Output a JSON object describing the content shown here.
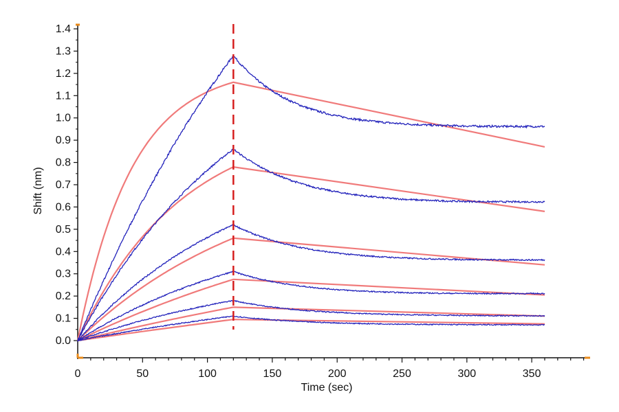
{
  "chart_data": {
    "type": "line",
    "xlabel": "Time (sec)",
    "ylabel": "Shift (nm)",
    "xlim": [
      0,
      395
    ],
    "ylim": [
      -0.05,
      1.42
    ],
    "x_ticks": [
      0,
      50,
      100,
      150,
      200,
      250,
      300,
      350
    ],
    "x_tick_labels": [
      "0",
      "50",
      "100",
      "150",
      "200",
      "250",
      "300",
      "350"
    ],
    "y_ticks": [
      0.0,
      0.1,
      0.2,
      0.3,
      0.4,
      0.5,
      0.6,
      0.7,
      0.8,
      0.9,
      1.0,
      1.1,
      1.2,
      1.3,
      1.4
    ],
    "y_tick_labels": [
      "0.0",
      "0.1",
      "0.2",
      "0.3",
      "0.4",
      "0.5",
      "0.6",
      "0.7",
      "0.8",
      "0.9",
      "1.0",
      "1.1",
      "1.2",
      "1.3",
      "1.4"
    ],
    "grid": false,
    "legend": "none",
    "dissociation_start": 120,
    "x_end": 360,
    "colors": {
      "measured": "#2222bb",
      "fit": "#f07a7a",
      "marker": "#d61e1e",
      "axis": "#111111",
      "axis_end": "#e88a1a"
    },
    "measured": [
      {
        "assoc_peak": 1.28,
        "assoc_tau": 200,
        "dissoc_plateau": 0.95,
        "dissoc_tau": 45,
        "end": 0.96
      },
      {
        "assoc_peak": 0.86,
        "assoc_tau": 130,
        "dissoc_plateau": 0.6,
        "dissoc_tau": 55,
        "end": 0.62
      },
      {
        "assoc_peak": 0.52,
        "assoc_tau": 130,
        "dissoc_plateau": 0.35,
        "dissoc_tau": 55,
        "end": 0.36
      },
      {
        "assoc_peak": 0.31,
        "assoc_tau": 150,
        "dissoc_plateau": 0.2,
        "dissoc_tau": 55,
        "end": 0.21
      },
      {
        "assoc_peak": 0.18,
        "assoc_tau": 170,
        "dissoc_plateau": 0.11,
        "dissoc_tau": 55,
        "end": 0.11
      },
      {
        "assoc_peak": 0.11,
        "assoc_tau": 300,
        "dissoc_plateau": 0.07,
        "dissoc_tau": 55,
        "end": 0.07
      }
    ],
    "fit": [
      {
        "peak": 1.16,
        "assoc_tau": 42,
        "end": 0.87
      },
      {
        "peak": 0.78,
        "assoc_tau": 80,
        "end": 0.58
      },
      {
        "peak": 0.46,
        "assoc_tau": 140,
        "end": 0.34
      },
      {
        "peak": 0.275,
        "assoc_tau": 260,
        "end": 0.205
      },
      {
        "peak": 0.15,
        "assoc_tau": 500,
        "end": 0.11
      },
      {
        "peak": 0.095,
        "assoc_tau": 1000,
        "end": 0.075
      }
    ]
  }
}
